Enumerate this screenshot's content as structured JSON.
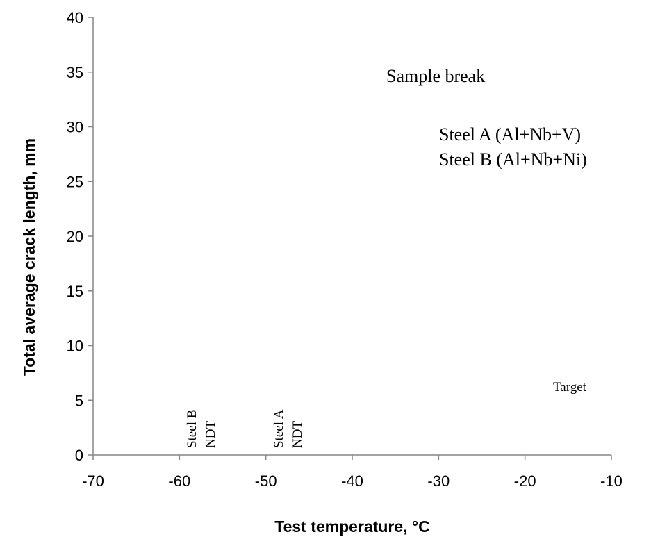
{
  "chart_data": {
    "type": "scatter",
    "xlabel": "Test temperature, °C",
    "ylabel": "Total average crack length, mm",
    "xlim": [
      -70,
      -10
    ],
    "ylim": [
      0,
      40
    ],
    "x_ticks": [
      -70,
      -60,
      -50,
      -40,
      -30,
      -20,
      -10
    ],
    "y_ticks": [
      0,
      5,
      10,
      15,
      20,
      25,
      30,
      35,
      40
    ],
    "grid": false,
    "series": [],
    "annotations": {
      "sample_break": "Sample break",
      "legend_a": "Steel A (Al+Nb+V)",
      "legend_b": "Steel B (Al+Nb+Ni)",
      "target": "Target",
      "steel_b_name": "Steel B",
      "steel_b_ndt": "NDT",
      "steel_a_name": "Steel A",
      "steel_a_ndt": "NDT"
    }
  }
}
